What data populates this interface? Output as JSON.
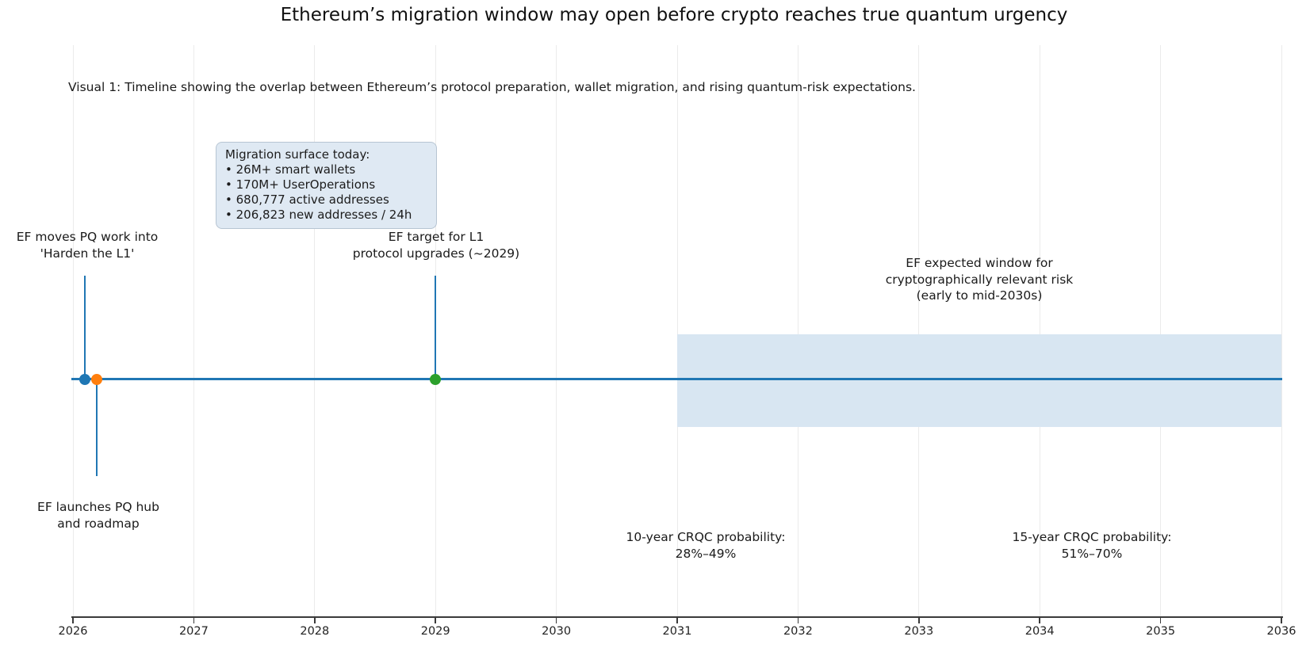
{
  "title": "Ethereum’s migration window may open before crypto reaches true quantum urgency",
  "subtitle": "Visual 1: Timeline showing the overlap between Ethereum’s protocol preparation, wallet migration, and rising quantum-risk expectations.",
  "infobox": {
    "title": "Migration surface today:",
    "bullet": "•",
    "items": [
      "26M+ smart wallets",
      "170M+ UserOperations",
      "680,777 active addresses",
      "206,823 new addresses / 24h"
    ]
  },
  "events": [
    {
      "lines": [
        "EF moves PQ work into",
        "'Harden the L1'"
      ],
      "year": 2026.1,
      "marker_color": "#1f77b4",
      "label_side": "above"
    },
    {
      "lines": [
        "EF launches PQ hub",
        "and roadmap"
      ],
      "year": 2026.2,
      "marker_color": "#ff7f0e",
      "label_side": "below"
    },
    {
      "lines": [
        "EF target for L1",
        "protocol upgrades (~2029)"
      ],
      "year": 2029,
      "marker_color": "#2ca02c",
      "label_side": "above"
    }
  ],
  "band": {
    "lines": [
      "EF expected window for",
      "cryptographically relevant risk",
      "(early to mid-2030s)"
    ],
    "start_year": 2031,
    "end_year": 2036,
    "fill_color": "#d8e6f2"
  },
  "probabilities": [
    {
      "lines": [
        "10-year CRQC probability:",
        "28%–49%"
      ],
      "anchor_year": 2031.3
    },
    {
      "lines": [
        "15-year CRQC probability:",
        "51%–70%"
      ],
      "anchor_year": 2034.4
    }
  ],
  "axis": {
    "ticks": [
      "2026",
      "2027",
      "2028",
      "2029",
      "2030",
      "2031",
      "2032",
      "2033",
      "2034",
      "2035",
      "2036"
    ]
  },
  "colors": {
    "timeline_blue": "#1f77b4",
    "event_orange": "#ff7f0e",
    "event_green": "#2ca02c",
    "band_fill": "#d8e6f2",
    "infobox_fill": "#dfe9f3",
    "infobox_border": "#b7c5d3",
    "gridline": "#ebebeb",
    "spine": "#3a3a3a"
  },
  "chart_data": {
    "type": "scatter",
    "subtype": "timeline",
    "title": "Ethereum’s migration window may open before crypto reaches true quantum urgency",
    "subtitle": "Visual 1: Timeline showing the overlap between Ethereum’s protocol preparation, wallet migration, and rising quantum-risk expectations.",
    "xlabel": "",
    "ylabel": "",
    "xlim": [
      2026,
      2036
    ],
    "x_ticks": [
      2026,
      2027,
      2028,
      2029,
      2030,
      2031,
      2032,
      2033,
      2034,
      2035,
      2036
    ],
    "grid": true,
    "baseline_y": 0,
    "series": [
      {
        "name": "EF moves PQ work into 'Harden the L1'",
        "x": 2026.1,
        "y": 0,
        "color": "#1f77b4",
        "stem": "up"
      },
      {
        "name": "EF launches PQ hub and roadmap",
        "x": 2026.2,
        "y": 0,
        "color": "#ff7f0e",
        "stem": "down"
      },
      {
        "name": "EF target for L1 protocol upgrades (~2029)",
        "x": 2029,
        "y": 0,
        "color": "#2ca02c",
        "stem": "up"
      }
    ],
    "axvspan": {
      "label": "EF expected window for cryptographically relevant risk (early to mid-2030s)",
      "x_start": 2031,
      "x_end": 2036,
      "color": "#d8e6f2"
    },
    "annotations": [
      {
        "text": "10-year CRQC probability: 28%–49%",
        "x": 2031.3,
        "position": "below-axis"
      },
      {
        "text": "15-year CRQC probability: 51%–70%",
        "x": 2034.4,
        "position": "below-axis"
      },
      {
        "text": "Migration surface today: 26M+ smart wallets; 170M+ UserOperations; 680,777 active addresses; 206,823 new addresses / 24h",
        "x": 2027.2,
        "position": "callout-box"
      }
    ],
    "legend": false
  }
}
